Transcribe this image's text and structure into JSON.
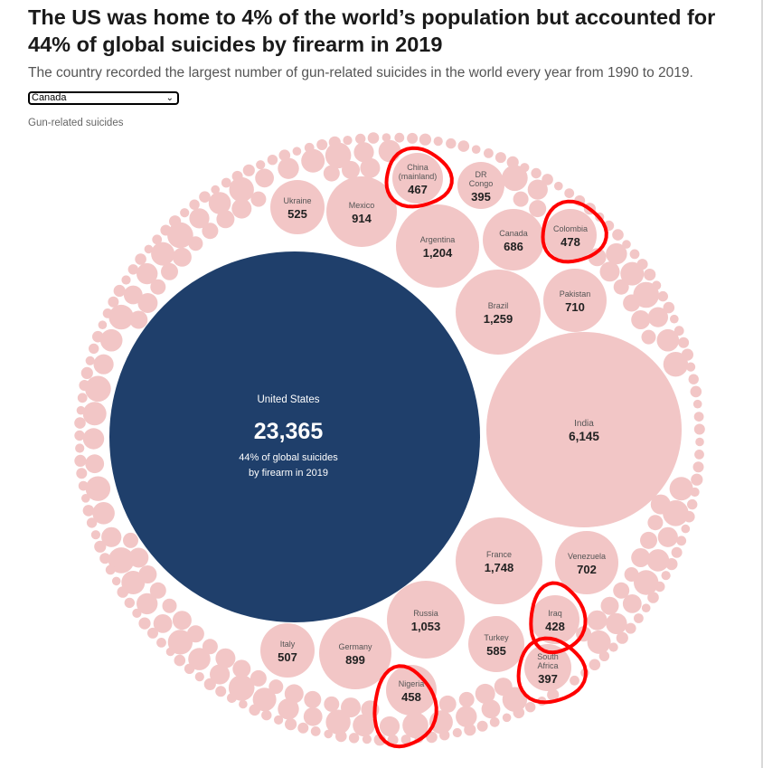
{
  "title": "The US was home to 4% of the world’s population but accounted for\n44% of global suicides by firearm in 2019",
  "subtitle": "The country recorded the largest number of gun-related suicides in the world every year from 1990 to 2019.",
  "dropdown": {
    "selected": "Canada",
    "icon": "chevron-down-icon"
  },
  "legend_label": "Gun-related suicides",
  "colors": {
    "us": "#1f3f6b",
    "other": "#f2c6c6",
    "highlight_circle": "#ff0000"
  },
  "chart_data": {
    "type": "bubble",
    "title": "The US was home to 4% of the world’s population but accounted for 44% of global suicides by firearm in 2019",
    "featured": {
      "name": "United States",
      "value": 23365,
      "display": "23,365",
      "note": "44% of global suicides by firearm in 2019"
    },
    "bubbles": [
      {
        "name": "India",
        "value": 6145,
        "display": "6,145"
      },
      {
        "name": "France",
        "value": 1748,
        "display": "1,748"
      },
      {
        "name": "Brazil",
        "value": 1259,
        "display": "1,259"
      },
      {
        "name": "Argentina",
        "value": 1204,
        "display": "1,204"
      },
      {
        "name": "Russia",
        "value": 1053,
        "display": "1,053"
      },
      {
        "name": "Mexico",
        "value": 914,
        "display": "914"
      },
      {
        "name": "Germany",
        "value": 899,
        "display": "899"
      },
      {
        "name": "Pakistan",
        "value": 710,
        "display": "710"
      },
      {
        "name": "Venezuela",
        "value": 702,
        "display": "702"
      },
      {
        "name": "Canada",
        "value": 686,
        "display": "686"
      },
      {
        "name": "Turkey",
        "value": 585,
        "display": "585"
      },
      {
        "name": "Ukraine",
        "value": 525,
        "display": "525"
      },
      {
        "name": "Italy",
        "value": 507,
        "display": "507"
      },
      {
        "name": "Colombia",
        "value": 478,
        "display": "478"
      },
      {
        "name": "China\n(mainland)",
        "value": 467,
        "display": "467"
      },
      {
        "name": "Nigeria",
        "value": 458,
        "display": "458"
      },
      {
        "name": "Iraq",
        "value": 428,
        "display": "428"
      },
      {
        "name": "South\nAfrica",
        "value": 397,
        "display": "397"
      },
      {
        "name": "DR\nCongo",
        "value": 395,
        "display": "395"
      }
    ]
  },
  "annotations": [
    "China (mainland)",
    "Colombia",
    "Iraq",
    "South Africa",
    "Nigeria"
  ]
}
